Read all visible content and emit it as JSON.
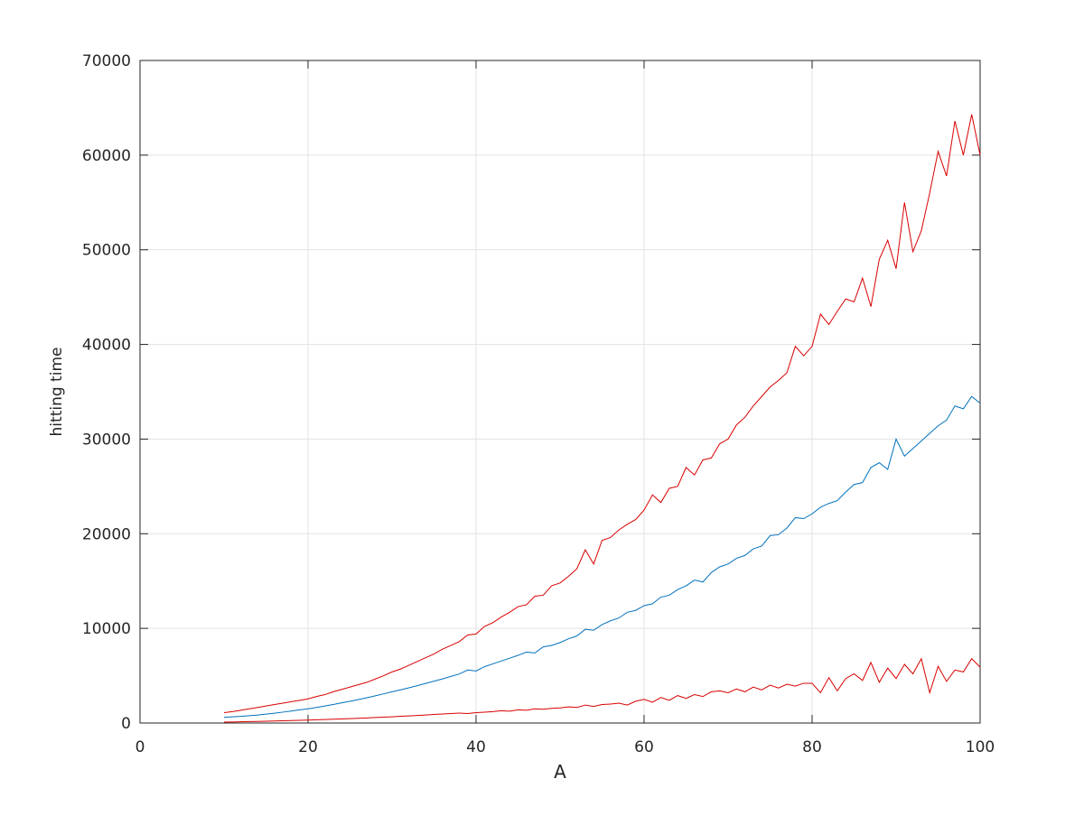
{
  "chart_data": {
    "type": "line",
    "xlabel": "A",
    "ylabel": "hitting time",
    "x": [
      10,
      11,
      12,
      13,
      14,
      15,
      16,
      17,
      18,
      19,
      20,
      21,
      22,
      23,
      24,
      25,
      26,
      27,
      28,
      29,
      30,
      31,
      32,
      33,
      34,
      35,
      36,
      37,
      38,
      39,
      40,
      41,
      42,
      43,
      44,
      45,
      46,
      47,
      48,
      49,
      50,
      51,
      52,
      53,
      54,
      55,
      56,
      57,
      58,
      59,
      60,
      61,
      62,
      63,
      64,
      65,
      66,
      67,
      68,
      69,
      70,
      71,
      72,
      73,
      74,
      75,
      76,
      77,
      78,
      79,
      80,
      81,
      82,
      83,
      84,
      85,
      86,
      87,
      88,
      89,
      90,
      91,
      92,
      93,
      94,
      95,
      96,
      97,
      98,
      99,
      100
    ],
    "series": [
      {
        "color": "#d90000",
        "values": [
          1100,
          1200,
          1350,
          1500,
          1650,
          1800,
          1950,
          2100,
          2250,
          2400,
          2550,
          2800,
          3000,
          3300,
          3550,
          3800,
          4050,
          4300,
          4650,
          5000,
          5400,
          5700,
          6100,
          6500,
          6900,
          7300,
          7800,
          8200,
          8600,
          9300,
          9400,
          10200,
          10600,
          11200,
          11700,
          12300,
          12500,
          13400,
          13500,
          14500,
          14800,
          15500,
          16300,
          18300,
          16800,
          19300,
          19600,
          20400,
          21000,
          21500,
          22500,
          24100,
          23300,
          24800,
          25000,
          27000,
          26200,
          27800,
          28000,
          29500,
          30000,
          31500,
          32300,
          33500,
          34500,
          35500,
          36200,
          37000,
          39800,
          38800,
          39800,
          43200,
          42100,
          43500,
          44800,
          44500,
          47000,
          44000,
          49000,
          51000,
          48000,
          55000,
          49800,
          52000,
          56000,
          60400,
          57800,
          63600,
          60000,
          64300,
          60000
        ]
      },
      {
        "color": "#0072bd",
        "values": [
          600,
          650,
          700,
          780,
          850,
          940,
          1040,
          1150,
          1260,
          1390,
          1500,
          1640,
          1800,
          1960,
          2130,
          2300,
          2480,
          2670,
          2870,
          3080,
          3300,
          3500,
          3720,
          3950,
          4180,
          4420,
          4660,
          4920,
          5180,
          5600,
          5500,
          5950,
          6250,
          6550,
          6850,
          7150,
          7500,
          7400,
          8050,
          8200,
          8500,
          8900,
          9200,
          9900,
          9800,
          10400,
          10800,
          11100,
          11700,
          11900,
          12400,
          12600,
          13300,
          13500,
          14100,
          14500,
          15100,
          14900,
          15900,
          16500,
          16800,
          17400,
          17700,
          18400,
          18700,
          19800,
          19900,
          20600,
          21700,
          21600,
          22100,
          22800,
          23200,
          23500,
          24400,
          25200,
          25400,
          27000,
          27500,
          26800,
          30000,
          28200,
          29000,
          29800,
          30600,
          31400,
          32000,
          33500,
          33200,
          34500,
          33800
        ]
      },
      {
        "color": "#d90000",
        "values": [
          100,
          110,
          130,
          150,
          170,
          190,
          210,
          240,
          260,
          290,
          310,
          340,
          370,
          400,
          430,
          470,
          500,
          540,
          580,
          620,
          660,
          710,
          750,
          800,
          850,
          900,
          950,
          1000,
          1050,
          1000,
          1100,
          1150,
          1200,
          1300,
          1250,
          1400,
          1350,
          1500,
          1450,
          1550,
          1600,
          1700,
          1650,
          1900,
          1750,
          1950,
          2000,
          2100,
          1900,
          2300,
          2500,
          2200,
          2700,
          2400,
          2900,
          2600,
          3000,
          2800,
          3300,
          3400,
          3200,
          3600,
          3300,
          3800,
          3500,
          4000,
          3700,
          4100,
          3900,
          4200,
          4200,
          3200,
          4800,
          3400,
          4700,
          5200,
          4500,
          6400,
          4300,
          5800,
          4700,
          6200,
          5200,
          6800,
          3200,
          6000,
          4400,
          5600,
          5400,
          6800,
          5900
        ]
      }
    ],
    "xlim": [
      0,
      100
    ],
    "xticks": [
      0,
      20,
      40,
      60,
      80,
      100
    ],
    "ylim": [
      0,
      70000
    ],
    "yticks": [
      0,
      10000,
      20000,
      30000,
      40000,
      50000,
      60000,
      70000
    ],
    "grid": true
  }
}
